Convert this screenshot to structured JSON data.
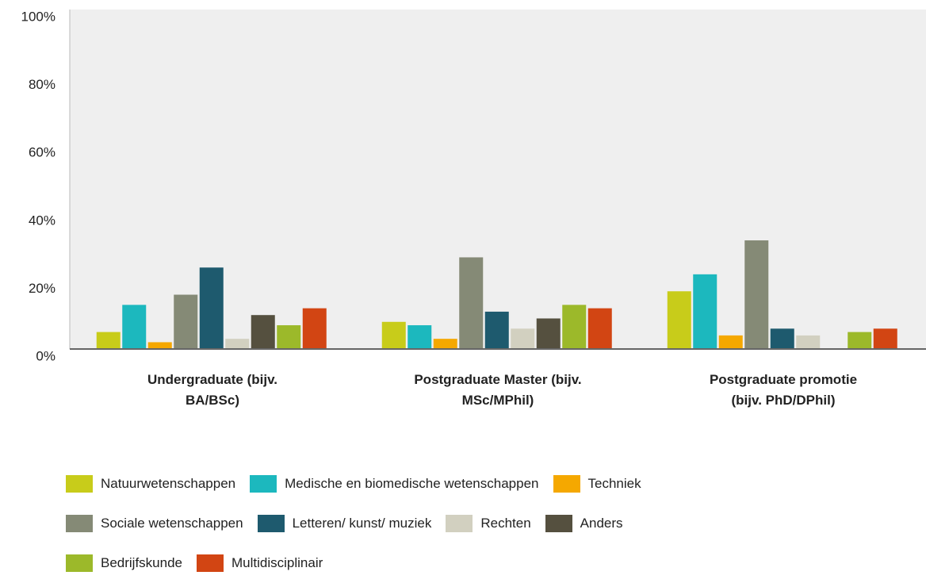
{
  "chart_data": {
    "type": "bar",
    "categories": [
      "Undergraduate (bijv. BA/BSc)",
      "Postgraduate Master (bijv. MSc/MPhil)",
      "Postgraduate promotie (bijv. PhD/DPhil)"
    ],
    "series": [
      {
        "name": "Natuurwetenschappen",
        "color": "#c8cc1a",
        "values": [
          5,
          8,
          17
        ]
      },
      {
        "name": "Medische en biomedische wetenschappen",
        "color": "#1cb8be",
        "values": [
          13,
          7,
          22
        ]
      },
      {
        "name": "Techniek",
        "color": "#f5a800",
        "values": [
          2,
          3,
          4
        ]
      },
      {
        "name": "Sociale wetenschappen",
        "color": "#858a76",
        "values": [
          16,
          27,
          32
        ]
      },
      {
        "name": "Letteren/ kunst/ muziek",
        "color": "#1e5a6e",
        "values": [
          24,
          11,
          6
        ]
      },
      {
        "name": "Rechten",
        "color": "#d2d0c0",
        "values": [
          3,
          6,
          4
        ]
      },
      {
        "name": "Anders",
        "color": "#55503f",
        "values": [
          10,
          9,
          0
        ]
      },
      {
        "name": "Bedrijfskunde",
        "color": "#9cb92a",
        "values": [
          7,
          13,
          5
        ]
      },
      {
        "name": "Multidisciplinair",
        "color": "#d24513",
        "values": [
          12,
          12,
          6
        ]
      }
    ],
    "ylim": [
      0,
      100
    ],
    "yticks": [
      {
        "value": 0,
        "label": "0%"
      },
      {
        "value": 20,
        "label": "20%"
      },
      {
        "value": 40,
        "label": "40%"
      },
      {
        "value": 60,
        "label": "60%"
      },
      {
        "value": 80,
        "label": "80%"
      },
      {
        "value": 100,
        "label": "100%"
      }
    ]
  }
}
